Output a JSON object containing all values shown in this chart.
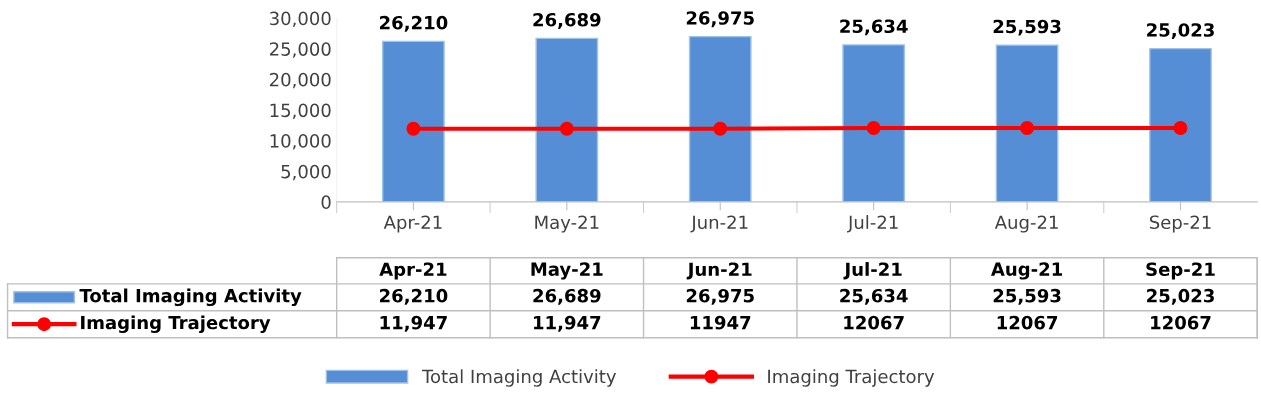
{
  "chart_data": {
    "type": "bar",
    "categories": [
      "Apr-21",
      "May-21",
      "Jun-21",
      "Jul-21",
      "Aug-21",
      "Sep-21"
    ],
    "series": [
      {
        "name": "Total Imaging Activity",
        "color": "#558ed5",
        "values": [
          26210,
          26689,
          26975,
          25634,
          25593,
          25023
        ],
        "value_labels": [
          "26,210",
          "26,689",
          "26,975",
          "25,634",
          "25,593",
          "25,023"
        ]
      },
      {
        "name": "Imaging Trajectory",
        "type": "line",
        "color": "#ff0000",
        "marker": "circle",
        "values": [
          11947,
          11947,
          11947,
          12067,
          12067,
          12067
        ],
        "value_labels": [
          "11,947",
          "11,947",
          "11947",
          "12067",
          "12067",
          "12067"
        ]
      }
    ],
    "ylim": [
      0,
      30000
    ],
    "yticks": [
      0,
      {
        "value": 5000,
        "label": "5,000"
      },
      {
        "value": 10000,
        "label": "10,000"
      },
      {
        "value": 15000,
        "label": "15,000"
      },
      {
        "value": 20000,
        "label": "20,000"
      },
      {
        "value": 25000,
        "label": "25,000"
      },
      {
        "value": 30000,
        "label": "30,000"
      }
    ],
    "data_labels": true,
    "grid": false,
    "legend": "bottom"
  }
}
